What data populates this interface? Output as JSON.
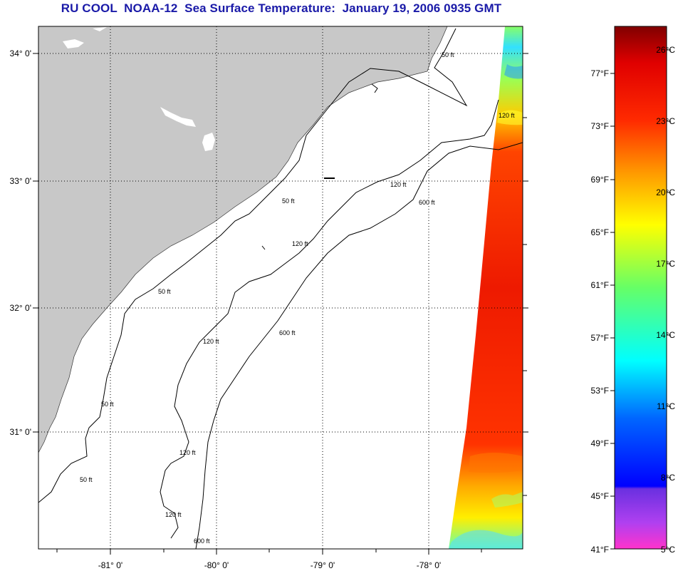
{
  "title": "RU COOL  NOAA-12  Sea Surface Temperature:  January 19, 2006 0935 GMT",
  "map": {
    "lat_labels": [
      "34° 0'",
      "33° 0'",
      "32° 0'",
      "31° 0'"
    ],
    "lon_labels": [
      "-81° 0'",
      "-80° 0'",
      "-79° 0'",
      "-78° 0'"
    ],
    "contours": [
      "50 ft",
      "120 ft",
      "600 ft"
    ],
    "contour_labels": [
      {
        "text": "50 ft"
      },
      {
        "text": "50 ft"
      },
      {
        "text": "50 ft"
      },
      {
        "text": "50 ft"
      },
      {
        "text": "50 ft"
      },
      {
        "text": "120 ft"
      },
      {
        "text": "120 ft"
      },
      {
        "text": "120 ft"
      },
      {
        "text": "120 ft"
      },
      {
        "text": "120 ft"
      },
      {
        "text": "120 ft"
      },
      {
        "text": "600 ft"
      },
      {
        "text": "600 ft"
      },
      {
        "text": "600 ft"
      }
    ],
    "colors": {
      "land": "#c8c8c8",
      "ocean": "#ffffff",
      "title": "#1a1aa8"
    }
  },
  "colorbar": {
    "fahrenheit": [
      "77°F",
      "73°F",
      "69°F",
      "65°F",
      "61°F",
      "57°F",
      "53°F",
      "49°F",
      "45°F",
      "41°F"
    ],
    "celsius": [
      "26°C",
      "23°C",
      "20°C",
      "17°C",
      "14°C",
      "11°C",
      "8°C",
      "5°C"
    ]
  }
}
